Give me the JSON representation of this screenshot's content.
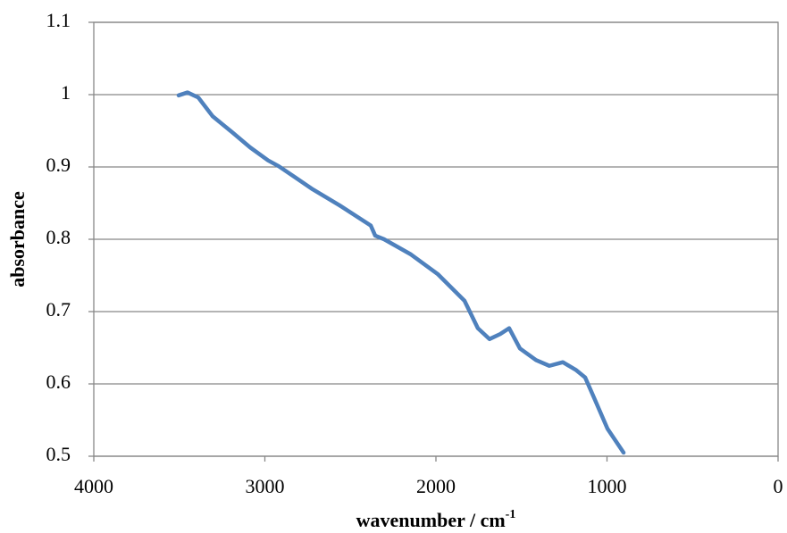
{
  "chart_data": {
    "type": "line",
    "xlabel": "wavenumber / cm",
    "xlabel_superscript": "-1",
    "ylabel": "absorbance",
    "x": [
      3504,
      3452,
      3389,
      3305,
      3191,
      3086,
      2981,
      2919,
      2825,
      2720,
      2564,
      2381,
      2355,
      2303,
      2146,
      1990,
      1833,
      1755,
      1687,
      1624,
      1572,
      1509,
      1415,
      1337,
      1258,
      1180,
      1128,
      1076,
      997,
      903
    ],
    "series": [
      {
        "name": "absorbance",
        "color": "#4f81bd",
        "values": [
          0.999,
          1.003,
          0.996,
          0.97,
          0.948,
          0.927,
          0.909,
          0.901,
          0.886,
          0.869,
          0.847,
          0.819,
          0.805,
          0.8,
          0.779,
          0.752,
          0.715,
          0.677,
          0.662,
          0.669,
          0.677,
          0.649,
          0.633,
          0.625,
          0.63,
          0.619,
          0.609,
          0.581,
          0.538,
          0.505
        ]
      }
    ],
    "xlim": [
      4000,
      0
    ],
    "xticks": [
      4000,
      3000,
      2000,
      1000,
      0
    ],
    "ylim": [
      0.5,
      1.1
    ],
    "yticks": [
      0.5,
      0.6,
      0.7,
      0.8,
      0.9,
      1,
      1.1
    ],
    "grid": true
  }
}
